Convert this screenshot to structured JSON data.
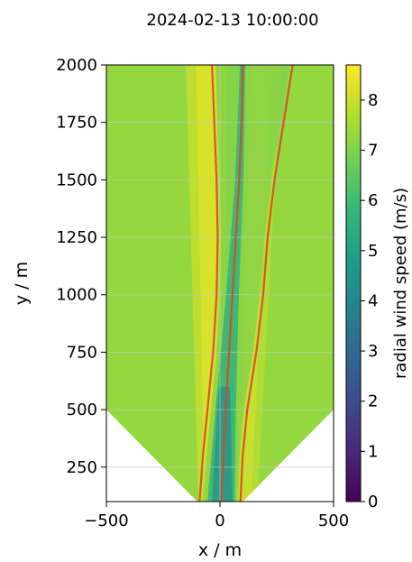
{
  "chart_data": {
    "type": "heatmap",
    "title": "2024-02-13 10:00:00",
    "xlabel": "x / m",
    "ylabel": "y / m",
    "xlim": [
      -500,
      500
    ],
    "ylim": [
      100,
      2000
    ],
    "x_ticks": [
      -500,
      0,
      500
    ],
    "x_tick_labels": [
      "−500",
      "0",
      "500"
    ],
    "y_ticks": [
      250,
      500,
      750,
      1000,
      1250,
      1500,
      1750,
      2000
    ],
    "y_tick_labels": [
      "250",
      "500",
      "750",
      "1000",
      "1250",
      "1500",
      "1750",
      "2000"
    ],
    "grid": true,
    "colorbar": {
      "label": "radial wind speed (m/s)",
      "min": 0,
      "max": 8.7,
      "ticks": [
        0,
        1,
        2,
        3,
        4,
        5,
        6,
        7,
        8
      ],
      "tick_labels": [
        "0",
        "1",
        "2",
        "3",
        "4",
        "5",
        "6",
        "7",
        "8"
      ],
      "colormap": [
        "#440154",
        "#482878",
        "#3e4989",
        "#31688e",
        "#26828e",
        "#1f9e89",
        "#35b779",
        "#6ece58",
        "#b5de2b",
        "#fde725"
      ]
    },
    "scan_sector": {
      "apex_x": [
        -100,
        100
      ],
      "apex_y": 100,
      "left_edge": [
        [
          -100,
          100
        ],
        [
          -500,
          500
        ]
      ],
      "right_edge": [
        [
          100,
          100
        ],
        [
          500,
          500
        ]
      ]
    },
    "field": {
      "background_speed": 7.3,
      "high_speed_bands": [
        {
          "x_center_at_top": -60,
          "x_center_at_bottom": -40,
          "speed": 8.3
        },
        {
          "x_center_at_top": 180,
          "x_center_at_bottom": 110,
          "speed": 8.0
        }
      ],
      "wake_deficit": {
        "min_speed": 4.3,
        "center_speed_at_top": 7.0
      }
    },
    "series": [
      {
        "y": [
          100,
          300,
          500,
          750,
          1000,
          1250,
          1500,
          1750,
          2000
        ],
        "x": [
          -90,
          -75,
          -55,
          -30,
          -15,
          -10,
          -15,
          -25,
          -35
        ]
      },
      {
        "y": [
          100,
          300,
          500,
          750,
          1000,
          1250,
          1500,
          1750,
          2000
        ],
        "x": [
          5,
          15,
          25,
          40,
          55,
          70,
          85,
          95,
          100
        ]
      },
      {
        "y": [
          100,
          300,
          500,
          750,
          1000,
          1250,
          1500,
          1750,
          2000
        ],
        "x": [
          90,
          100,
          120,
          160,
          190,
          210,
          240,
          280,
          320
        ]
      }
    ],
    "line_color": "#d9472b"
  }
}
